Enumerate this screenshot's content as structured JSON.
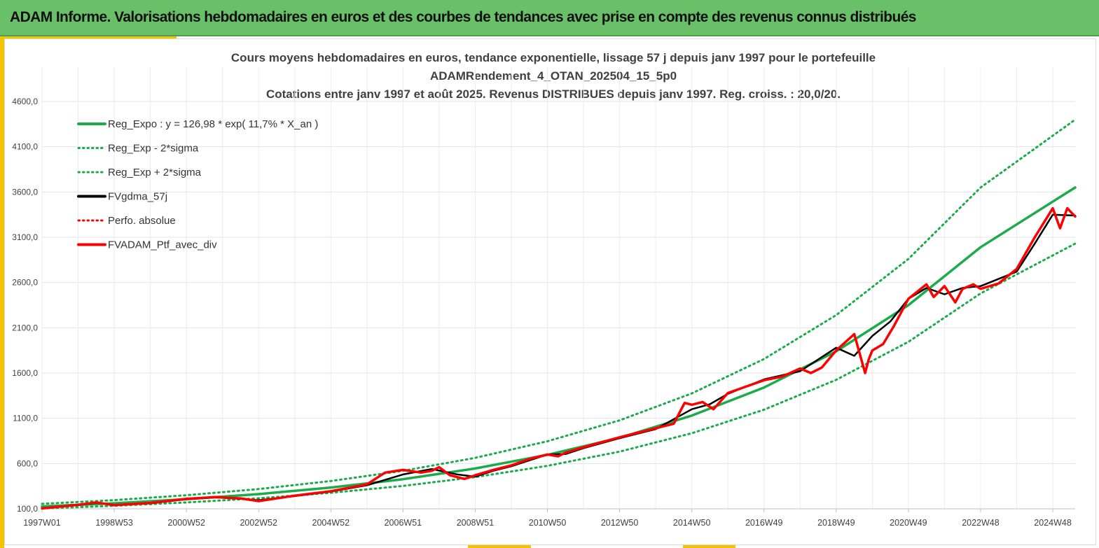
{
  "header": {
    "title": "ADAM Informe. Valorisations hebdomadaires en euros et des courbes de tendances avec prise en compte des revenus connus distribués"
  },
  "chart_data": {
    "type": "line",
    "title_lines": [
      "Cours moyens hebdomadaires  en euros, tendance exponentielle, lissage 57 j depuis janv 1997 pour le portefeuille",
      "ADAMRendement_4_OTAN_202504_15_5p0",
      "Cotations  entre janv 1997 et août 2025. Revenus DISTRIBUES depuis janv 1997. Reg. croiss. : 20,0/20."
    ],
    "xlabel": "",
    "ylabel": "",
    "x_tick_labels": [
      "1997W01",
      "1998W53",
      "2000W52",
      "2002W52",
      "2004W52",
      "2006W51",
      "2008W51",
      "2010W50",
      "2012W50",
      "2014W50",
      "2016W49",
      "2018W49",
      "2020W49",
      "2022W48",
      "2024W48"
    ],
    "x_tick_years": [
      1997,
      1999,
      2001,
      2003,
      2005,
      2007,
      2009,
      2011,
      2013,
      2015,
      2017,
      2019,
      2021,
      2023,
      2025
    ],
    "x_range_years": [
      1997.0,
      2025.62
    ],
    "y_ticks": [
      "100,0",
      "600,0",
      "1100,0",
      "1600,0",
      "2100,0",
      "2600,0",
      "3100,0",
      "3600,0",
      "4100,0",
      "4600,0"
    ],
    "y_tick_values": [
      100,
      600,
      1100,
      1600,
      2100,
      2600,
      3100,
      3600,
      4100,
      4600
    ],
    "ylim": [
      100,
      4600
    ],
    "grid": true,
    "legend_position": "top-left",
    "colors": {
      "trend": "#1aab4a",
      "smooth": "#000000",
      "portfolio": "#ff0000"
    },
    "legend": [
      {
        "key": "reg",
        "label": "Reg_Expo : y = 126,98 * exp( 11,7% *  X_an )",
        "color": "#1aab4a",
        "style": "solid"
      },
      {
        "key": "low",
        "label": "Reg_Exp - 2*sigma",
        "color": "#1aab4a",
        "style": "dotted"
      },
      {
        "key": "high",
        "label": "Reg_Exp + 2*sigma",
        "color": "#1aab4a",
        "style": "dotted"
      },
      {
        "key": "smooth",
        "label": "FVgdma_57j",
        "color": "#000000",
        "style": "solid"
      },
      {
        "key": "perfo",
        "label": "Perfo. absolue",
        "color": "#ff0000",
        "style": "dotted"
      },
      {
        "key": "ptf",
        "label": "FVADAM_Ptf_avec_div",
        "color": "#ff0000",
        "style": "solid"
      }
    ],
    "series": [
      {
        "name": "Reg_Expo : y = 126,98 * exp( 11,7% *  X_an )",
        "x": [
          1997.0,
          1999.0,
          2001.0,
          2003.0,
          2005.0,
          2007.0,
          2009.0,
          2011.0,
          2013.0,
          2015.0,
          2017.0,
          2019.0,
          2021.0,
          2023.0,
          2025.62
        ],
        "values": [
          127,
          161,
          206,
          262,
          335,
          427,
          545,
          696,
          885,
          1130,
          1440,
          1840,
          2350,
          2990,
          3650
        ]
      },
      {
        "name": "Reg_Exp - 2*sigma",
        "x": [
          1997.0,
          1999.0,
          2001.0,
          2003.0,
          2005.0,
          2007.0,
          2009.0,
          2011.0,
          2013.0,
          2015.0,
          2017.0,
          2019.0,
          2021.0,
          2023.0,
          2025.62
        ],
        "values": [
          105,
          133,
          170,
          216,
          277,
          353,
          450,
          575,
          732,
          935,
          1195,
          1525,
          1945,
          2480,
          3030
        ]
      },
      {
        "name": "Reg_Exp + 2*sigma",
        "x": [
          1997.0,
          1999.0,
          2001.0,
          2003.0,
          2005.0,
          2007.0,
          2009.0,
          2011.0,
          2013.0,
          2015.0,
          2017.0,
          2019.0,
          2021.0,
          2023.0,
          2025.62
        ],
        "values": [
          155,
          196,
          250,
          318,
          407,
          520,
          663,
          846,
          1077,
          1375,
          1755,
          2240,
          2860,
          3650,
          4400
        ]
      },
      {
        "name": "FVgdma_57j",
        "x": [
          1997.0,
          1998.0,
          1998.5,
          1999.0,
          2000.0,
          2001.0,
          2001.8,
          2002.5,
          2003.0,
          2004.0,
          2005.0,
          2006.0,
          2007.0,
          2007.8,
          2008.5,
          2009.0,
          2009.5,
          2010.0,
          2011.0,
          2011.5,
          2012.0,
          2013.0,
          2014.0,
          2015.0,
          2015.5,
          2016.0,
          2017.0,
          2018.0,
          2019.0,
          2019.5,
          2020.0,
          2020.5,
          2021.0,
          2021.5,
          2022.0,
          2022.5,
          2023.0,
          2024.0,
          2024.5,
          2025.0,
          2025.62
        ],
        "values": [
          108,
          140,
          165,
          145,
          160,
          205,
          225,
          210,
          195,
          240,
          290,
          360,
          480,
          540,
          480,
          455,
          520,
          570,
          700,
          705,
          770,
          880,
          980,
          1200,
          1255,
          1370,
          1530,
          1620,
          1880,
          1790,
          2010,
          2170,
          2420,
          2540,
          2470,
          2540,
          2560,
          2720,
          3030,
          3350,
          3340
        ]
      },
      {
        "name": "FVADAM_Ptf_avec_div",
        "x": [
          1997.0,
          1998.0,
          1998.5,
          1999.0,
          2000.0,
          2001.0,
          2001.8,
          2002.5,
          2003.0,
          2004.0,
          2005.0,
          2006.0,
          2006.5,
          2007.0,
          2007.5,
          2007.8,
          2008.0,
          2008.3,
          2008.7,
          2009.0,
          2009.5,
          2010.0,
          2010.5,
          2011.0,
          2011.3,
          2011.5,
          2012.0,
          2013.0,
          2014.0,
          2014.5,
          2014.8,
          2015.0,
          2015.3,
          2015.6,
          2016.0,
          2016.5,
          2017.0,
          2017.5,
          2018.0,
          2018.3,
          2018.6,
          2019.0,
          2019.5,
          2019.8,
          2019.9,
          2020.0,
          2020.3,
          2020.6,
          2021.0,
          2021.5,
          2021.7,
          2022.0,
          2022.3,
          2022.5,
          2022.8,
          2023.0,
          2023.5,
          2024.0,
          2024.5,
          2025.0,
          2025.2,
          2025.4,
          2025.62
        ],
        "values": [
          105,
          145,
          170,
          140,
          165,
          210,
          230,
          215,
          185,
          245,
          295,
          370,
          500,
          530,
          500,
          520,
          560,
          470,
          430,
          470,
          530,
          580,
          650,
          700,
          680,
          720,
          780,
          890,
          990,
          1040,
          1270,
          1250,
          1280,
          1200,
          1380,
          1450,
          1520,
          1560,
          1650,
          1600,
          1660,
          1850,
          2030,
          1600,
          1750,
          1850,
          1920,
          2120,
          2420,
          2580,
          2440,
          2560,
          2380,
          2530,
          2580,
          2530,
          2590,
          2750,
          3100,
          3420,
          3200,
          3420,
          3330
        ]
      }
    ]
  }
}
